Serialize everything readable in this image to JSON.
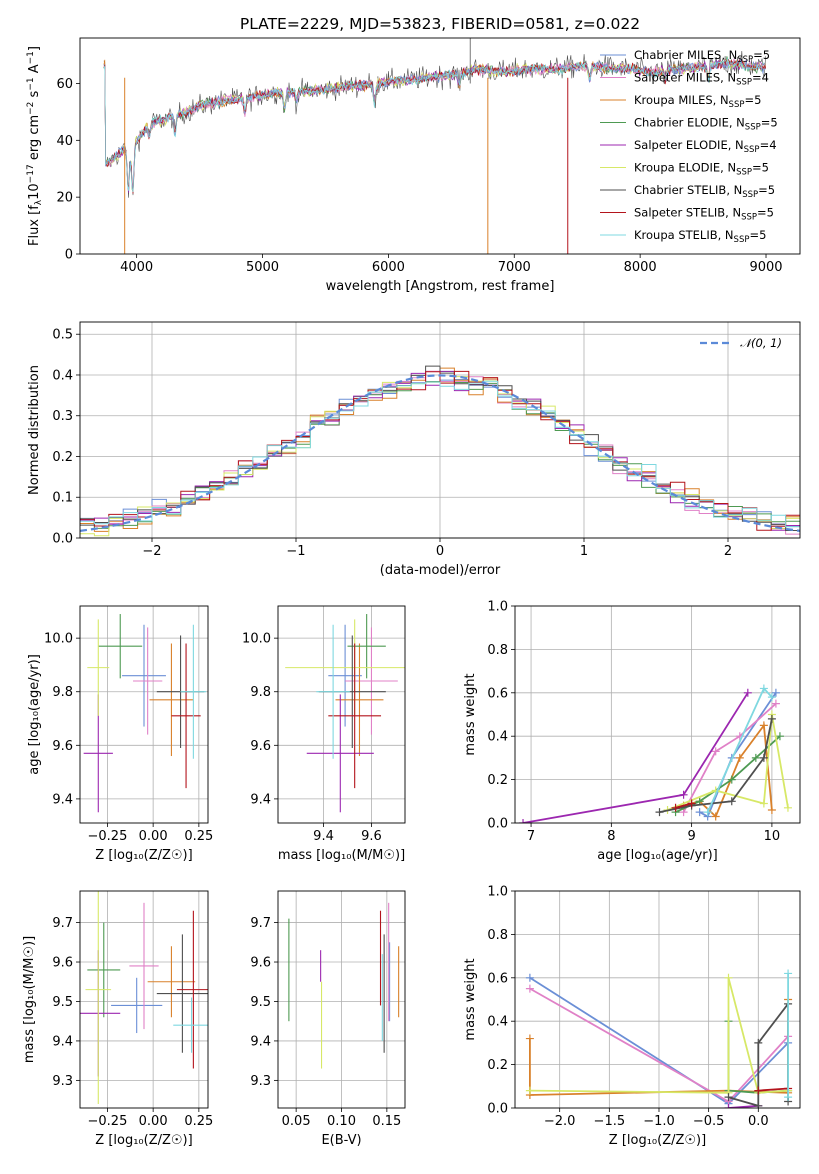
{
  "figure": {
    "title": "PLATE=2229, MJD=53823, FIBERID=0581, z=0.022"
  },
  "colors": {
    "Chabrier MILES": "#6b8fd6",
    "Salpeter MILES": "#e081c7",
    "Kroupa MILES": "#d9812b",
    "Chabrier ELODIE": "#4e9a52",
    "Salpeter ELODIE": "#9c27b0",
    "Kroupa ELODIE": "#d7e867",
    "Chabrier STELIB": "#4f4f4f",
    "Salpeter STELIB": "#b3141c",
    "Kroupa STELIB": "#7fd8e0"
  },
  "chart_data": [
    {
      "id": "spectrum",
      "type": "line",
      "title": "PLATE=2229, MJD=53823, FIBERID=0581, z=0.022",
      "xlabel": "wavelength [Angstrom, rest frame]",
      "ylabel": "Flux [f",
      "ylabel_parts": [
        "Flux [f",
        "λ",
        "10",
        "−17",
        " erg cm",
        "−2",
        " s",
        "−1",
        " A",
        "−1",
        "]"
      ],
      "xlim": [
        3550,
        9270
      ],
      "ylim": [
        0,
        76
      ],
      "xticks": [
        4000,
        5000,
        6000,
        7000,
        8000,
        9000
      ],
      "yticks": [
        0,
        20,
        40,
        60
      ],
      "continuum": {
        "x": [
          3750,
          3800,
          3900,
          3950,
          4000,
          4100,
          4200,
          4300,
          4400,
          4500,
          4700,
          4900,
          5100,
          5300,
          5500,
          5700,
          5900,
          6100,
          6300,
          6500,
          6700,
          6900,
          7100,
          7300,
          7500,
          7700,
          7900,
          8100,
          8300,
          8500,
          8700,
          8900,
          9000
        ],
        "y": [
          31,
          33,
          37,
          36,
          40,
          46,
          47,
          49,
          50,
          52,
          54,
          55,
          57,
          57,
          58,
          59,
          60,
          61,
          62,
          63,
          65,
          64,
          65,
          65,
          66,
          66,
          65,
          64,
          65,
          66,
          67,
          66,
          66
        ]
      },
      "legend": [
        {
          "imf": "Chabrier",
          "lib": "MILES",
          "nssp": "5"
        },
        {
          "imf": "Salpeter",
          "lib": "MILES",
          "nssp": "4"
        },
        {
          "imf": "Kroupa",
          "lib": "MILES",
          "nssp": "5"
        },
        {
          "imf": "Chabrier",
          "lib": "ELODIE",
          "nssp": "5"
        },
        {
          "imf": "Salpeter",
          "lib": "ELODIE",
          "nssp": "4"
        },
        {
          "imf": "Kroupa",
          "lib": "ELODIE",
          "nssp": "5"
        },
        {
          "imf": "Chabrier",
          "lib": "STELIB",
          "nssp": "5"
        },
        {
          "imf": "Salpeter",
          "lib": "STELIB",
          "nssp": "5"
        },
        {
          "imf": "Kroupa",
          "lib": "STELIB",
          "nssp": "5"
        }
      ],
      "legend_position": "top-right"
    },
    {
      "id": "residuals",
      "type": "line",
      "xlabel": "(data-model)/error",
      "ylabel": "Normed distribution",
      "xlim": [
        -2.5,
        2.5
      ],
      "ylim": [
        0,
        0.53
      ],
      "xticks": [
        -2,
        -1,
        0,
        1,
        2
      ],
      "yticks": [
        0.0,
        0.1,
        0.2,
        0.3,
        0.4,
        0.5
      ],
      "grid": true,
      "legend": "𝒩(0, 1)",
      "legend_position": "top-right",
      "reference_curve": "standard normal density"
    },
    {
      "id": "age_vs_Z",
      "type": "scatter",
      "xlabel": "Z [log₁₀(Z/Z☉)]",
      "ylabel": "age  [log₁₀(age/yr)]",
      "xlim": [
        -0.4,
        0.3
      ],
      "ylim": [
        9.31,
        10.12
      ],
      "xticks": [
        -0.25,
        0.0,
        0.25
      ],
      "yticks": [
        9.4,
        9.6,
        9.8,
        10.0
      ],
      "grid": true,
      "points": [
        {
          "series": "Chabrier MILES",
          "x": -0.05,
          "y": 9.86,
          "xerr": 0.12,
          "yerr": 0.19
        },
        {
          "series": "Salpeter MILES",
          "x": -0.03,
          "y": 9.84,
          "xerr": 0.08,
          "yerr": 0.2
        },
        {
          "series": "Kroupa MILES",
          "x": 0.1,
          "y": 9.77,
          "xerr": 0.12,
          "yerr": 0.21
        },
        {
          "series": "Chabrier ELODIE",
          "x": -0.18,
          "y": 9.97,
          "xerr": 0.12,
          "yerr": 0.12
        },
        {
          "series": "Salpeter ELODIE",
          "x": -0.3,
          "y": 9.57,
          "xerr": 0.08,
          "yerr": 0.22
        },
        {
          "series": "Kroupa ELODIE",
          "x": -0.3,
          "y": 9.89,
          "xerr": 0.06,
          "yerr": 0.18
        },
        {
          "series": "Chabrier STELIB",
          "x": 0.15,
          "y": 9.8,
          "xerr": 0.13,
          "yerr": 0.21
        },
        {
          "series": "Salpeter STELIB",
          "x": 0.18,
          "y": 9.71,
          "xerr": 0.08,
          "yerr": 0.27
        },
        {
          "series": "Kroupa STELIB",
          "x": 0.22,
          "y": 9.8,
          "xerr": 0.07,
          "yerr": 0.25
        }
      ]
    },
    {
      "id": "age_vs_mass",
      "type": "scatter",
      "xlabel": "mass [log₁₀(M/M☉)]",
      "ylabel": "",
      "xlim": [
        9.21,
        9.74
      ],
      "ylim": [
        9.31,
        10.12
      ],
      "xticks": [
        9.4,
        9.6
      ],
      "yticks": [
        9.4,
        9.6,
        9.8,
        10.0
      ],
      "grid": true,
      "points": [
        {
          "series": "Chabrier MILES",
          "x": 9.49,
          "y": 9.86,
          "xerr": 0.07,
          "yerr": 0.19
        },
        {
          "series": "Salpeter MILES",
          "x": 9.6,
          "y": 9.84,
          "xerr": 0.11,
          "yerr": 0.2
        },
        {
          "series": "Kroupa MILES",
          "x": 9.55,
          "y": 9.77,
          "xerr": 0.1,
          "yerr": 0.21
        },
        {
          "series": "Chabrier ELODIE",
          "x": 9.58,
          "y": 9.97,
          "xerr": 0.08,
          "yerr": 0.12
        },
        {
          "series": "Salpeter ELODIE",
          "x": 9.47,
          "y": 9.57,
          "xerr": 0.14,
          "yerr": 0.22
        },
        {
          "series": "Kroupa ELODIE",
          "x": 9.53,
          "y": 9.89,
          "xerr": 0.29,
          "yerr": 0.18
        },
        {
          "series": "Chabrier STELIB",
          "x": 9.52,
          "y": 9.8,
          "xerr": 0.14,
          "yerr": 0.21
        },
        {
          "series": "Salpeter STELIB",
          "x": 9.53,
          "y": 9.71,
          "xerr": 0.11,
          "yerr": 0.27
        },
        {
          "series": "Kroupa STELIB",
          "x": 9.44,
          "y": 9.8,
          "xerr": 0.07,
          "yerr": 0.25
        }
      ]
    },
    {
      "id": "massweight_vs_age",
      "type": "line",
      "xlabel": "age  [log₁₀(age/yr)]",
      "ylabel": "mass weight",
      "xlim": [
        6.8,
        10.35
      ],
      "ylim": [
        0,
        1.0
      ],
      "xticks": [
        7,
        8,
        9,
        10
      ],
      "yticks": [
        0.0,
        0.2,
        0.4,
        0.6,
        0.8,
        1.0
      ],
      "grid": true,
      "series": [
        {
          "name": "Chabrier MILES",
          "x": [
            9.1,
            9.2,
            9.5,
            10.05
          ],
          "y": [
            0.05,
            0.03,
            0.3,
            0.6
          ]
        },
        {
          "name": "Salpeter MILES",
          "x": [
            8.9,
            9.3,
            9.6,
            10.05
          ],
          "y": [
            0.05,
            0.33,
            0.4,
            0.55
          ]
        },
        {
          "name": "Kroupa MILES",
          "x": [
            8.9,
            9.1,
            9.3,
            9.6,
            9.9,
            10.0
          ],
          "y": [
            0.08,
            0.1,
            0.03,
            0.3,
            0.45,
            0.06
          ]
        },
        {
          "name": "Chabrier ELODIE",
          "x": [
            8.8,
            9.1,
            9.5,
            9.8,
            10.1
          ],
          "y": [
            0.05,
            0.1,
            0.2,
            0.3,
            0.4
          ]
        },
        {
          "name": "Salpeter ELODIE",
          "x": [
            6.9,
            8.9,
            9.7
          ],
          "y": [
            0.0,
            0.13,
            0.6
          ]
        },
        {
          "name": "Kroupa ELODIE",
          "x": [
            8.7,
            9.3,
            9.9,
            10.0,
            10.2
          ],
          "y": [
            0.06,
            0.15,
            0.09,
            0.5,
            0.07
          ]
        },
        {
          "name": "Chabrier STELIB",
          "x": [
            8.6,
            9.0,
            9.5,
            9.9,
            10.0
          ],
          "y": [
            0.05,
            0.08,
            0.1,
            0.3,
            0.48
          ]
        },
        {
          "name": "Salpeter STELIB",
          "x": [
            8.8,
            9.0
          ],
          "y": [
            0.07,
            0.09
          ]
        },
        {
          "name": "Kroupa STELIB",
          "x": [
            9.2,
            9.9,
            10.0
          ],
          "y": [
            0.05,
            0.62,
            0.58
          ]
        }
      ]
    },
    {
      "id": "mass_vs_Z",
      "type": "scatter",
      "xlabel": "Z [log₁₀(Z/Z☉)]",
      "ylabel": "mass [log₁₀(M/M☉)]",
      "xlim": [
        -0.4,
        0.3
      ],
      "ylim": [
        9.23,
        9.78
      ],
      "xticks": [
        -0.25,
        0.0,
        0.25
      ],
      "yticks": [
        9.3,
        9.4,
        9.5,
        9.6,
        9.7
      ],
      "grid": true,
      "points": [
        {
          "series": "Chabrier MILES",
          "x": -0.09,
          "y": 9.49,
          "xerr": 0.14,
          "yerr": 0.07
        },
        {
          "series": "Salpeter MILES",
          "x": -0.05,
          "y": 9.59,
          "xerr": 0.08,
          "yerr": 0.16
        },
        {
          "series": "Kroupa MILES",
          "x": 0.1,
          "y": 9.55,
          "xerr": 0.13,
          "yerr": 0.09
        },
        {
          "series": "Chabrier ELODIE",
          "x": -0.27,
          "y": 9.58,
          "xerr": 0.09,
          "yerr": 0.12
        },
        {
          "series": "Salpeter ELODIE",
          "x": -0.3,
          "y": 9.47,
          "xerr": 0.12,
          "yerr": 0.16
        },
        {
          "series": "Kroupa ELODIE",
          "x": -0.3,
          "y": 9.53,
          "xerr": 0.07,
          "yerr": 0.29
        },
        {
          "series": "Chabrier STELIB",
          "x": 0.16,
          "y": 9.52,
          "xerr": 0.14,
          "yerr": 0.15
        },
        {
          "series": "Salpeter STELIB",
          "x": 0.22,
          "y": 9.53,
          "xerr": 0.09,
          "yerr": 0.2
        },
        {
          "series": "Kroupa STELIB",
          "x": 0.21,
          "y": 9.44,
          "xerr": 0.1,
          "yerr": 0.07
        }
      ]
    },
    {
      "id": "mass_vs_EBV",
      "type": "scatter",
      "xlabel": "E(B-V)",
      "ylabel": "",
      "xlim": [
        0.03,
        0.17
      ],
      "ylim": [
        9.23,
        9.78
      ],
      "xticks": [
        0.05,
        0.1,
        0.15
      ],
      "yticks": [
        9.3,
        9.4,
        9.5,
        9.6,
        9.7
      ],
      "grid": true,
      "points": [
        {
          "series": "Chabrier MILES",
          "x": 0.153,
          "y": 9.55,
          "yerr": 0.1
        },
        {
          "series": "Salpeter MILES",
          "x": 0.152,
          "y": 9.6,
          "yerr": 0.15
        },
        {
          "series": "Kroupa MILES",
          "x": 0.163,
          "y": 9.55,
          "yerr": 0.09
        },
        {
          "series": "Chabrier ELODIE",
          "x": 0.042,
          "y": 9.58,
          "yerr": 0.13
        },
        {
          "series": "Salpeter ELODIE",
          "x": 0.077,
          "y": 9.59,
          "yerr": 0.04
        },
        {
          "series": "Kroupa ELODIE",
          "x": 0.078,
          "y": 9.44,
          "yerr": 0.11
        },
        {
          "series": "Chabrier STELIB",
          "x": 0.147,
          "y": 9.52,
          "yerr": 0.15
        },
        {
          "series": "Salpeter STELIB",
          "x": 0.143,
          "y": 9.61,
          "yerr": 0.12
        },
        {
          "series": "Kroupa STELIB",
          "x": 0.145,
          "y": 9.51,
          "yerr": 0.11
        }
      ]
    },
    {
      "id": "massweight_vs_Z",
      "type": "line",
      "xlabel": "Z [log₁₀(Z/Z☉)]",
      "ylabel": "mass weight",
      "xlim": [
        -2.45,
        0.42
      ],
      "ylim": [
        0,
        1.0
      ],
      "xticks": [
        -2.0,
        -1.5,
        -1.0,
        -0.5,
        0.0
      ],
      "yticks": [
        0.0,
        0.2,
        0.4,
        0.6,
        0.8,
        1.0
      ],
      "grid": true,
      "series": [
        {
          "name": "Chabrier MILES",
          "x": [
            -2.3,
            -0.3,
            0.3
          ],
          "y": [
            0.6,
            0.02,
            0.3
          ]
        },
        {
          "name": "Salpeter MILES",
          "x": [
            -2.3,
            -0.3,
            0.3
          ],
          "y": [
            0.55,
            0.03,
            0.33
          ]
        },
        {
          "name": "Kroupa MILES",
          "x": [
            -2.3,
            -2.3,
            -0.3,
            0.3,
            0.3
          ],
          "y": [
            0.32,
            0.06,
            0.08,
            0.07,
            0.5
          ]
        },
        {
          "name": "Chabrier ELODIE",
          "x": [
            -0.3,
            -0.3,
            0.0,
            0.3
          ],
          "y": [
            0.4,
            0.08,
            0.07,
            0.08
          ]
        },
        {
          "name": "Salpeter ELODIE",
          "x": [
            -0.3,
            0.0
          ],
          "y": [
            0.0,
            0.01
          ]
        },
        {
          "name": "Kroupa ELODIE",
          "x": [
            -2.3,
            -0.3,
            -0.3,
            0.0,
            0.3
          ],
          "y": [
            0.08,
            0.07,
            0.6,
            0.07,
            0.08
          ]
        },
        {
          "name": "Chabrier STELIB",
          "x": [
            -0.3,
            0.0,
            0.0,
            0.3,
            0.3
          ],
          "y": [
            0.05,
            0.01,
            0.3,
            0.48,
            0.03
          ]
        },
        {
          "name": "Salpeter STELIB",
          "x": [
            0.0,
            0.3
          ],
          "y": [
            0.08,
            0.09
          ]
        },
        {
          "name": "Kroupa STELIB",
          "x": [
            0.3,
            0.3
          ],
          "y": [
            0.05,
            0.62
          ]
        }
      ]
    }
  ]
}
